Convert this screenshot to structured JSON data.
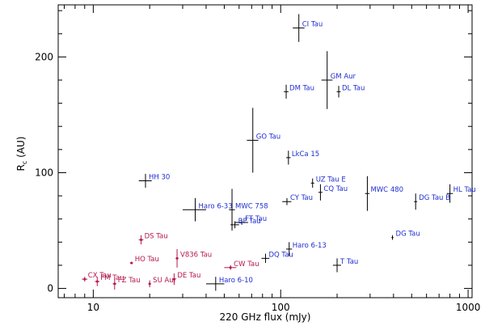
{
  "chart_data": {
    "type": "scatter",
    "title": "",
    "xlabel": "220 GHz flux (mJy)",
    "ylabel_main": "R",
    "ylabel_sub": "c",
    "ylabel_unit": " (AU)",
    "xscale": "log",
    "xlim": [
      6.5,
      1050
    ],
    "ylim": [
      -8,
      245
    ],
    "grid": false,
    "x_ticks": [
      10,
      100,
      1000
    ],
    "x_tick_labels": [
      "10",
      "100",
      "1000"
    ],
    "y_ticks": [
      0,
      100,
      200
    ],
    "y_tick_labels": [
      "0",
      "100",
      "200"
    ],
    "colors": {
      "blue": "#1f2ecf",
      "red": "#b5174a",
      "err": "#000000"
    },
    "points": [
      {
        "label": "CI Tau",
        "x": 125,
        "y": 225,
        "xerr": 9,
        "yerr": 12,
        "color": "blue",
        "ldx": 4,
        "ldy": -2
      },
      {
        "label": "GM Aur",
        "x": 177,
        "y": 180,
        "xerr": 12,
        "yerr": 25,
        "color": "blue",
        "ldx": 4,
        "ldy": -2
      },
      {
        "label": "DM Tau",
        "x": 107,
        "y": 170,
        "xerr": 3,
        "yerr": 6,
        "color": "blue",
        "ldx": 4,
        "ldy": -2
      },
      {
        "label": "DL Tau",
        "x": 204,
        "y": 170,
        "xerr": 5,
        "yerr": 5,
        "color": "blue",
        "ldx": 4,
        "ldy": -2
      },
      {
        "label": "GO Tau",
        "x": 71,
        "y": 128,
        "xerr": 5,
        "yerr": 28,
        "color": "blue",
        "ldx": 4,
        "ldy": -2
      },
      {
        "label": "LkCa 15",
        "x": 110,
        "y": 113,
        "xerr": 3,
        "yerr": 6,
        "color": "blue",
        "ldx": 4,
        "ldy": -2
      },
      {
        "label": "HH 30",
        "x": 19,
        "y": 93,
        "xerr": 1.5,
        "yerr": 6,
        "color": "blue",
        "ldx": 4,
        "ldy": -2
      },
      {
        "label": "UZ Tau E",
        "x": 148,
        "y": 91,
        "xerr": 3,
        "yerr": 4,
        "color": "blue",
        "ldx": 4,
        "ldy": -2
      },
      {
        "label": "CQ Tau",
        "x": 163,
        "y": 83,
        "xerr": 4,
        "yerr": 7,
        "color": "blue",
        "ldx": 4,
        "ldy": -2
      },
      {
        "label": "MWC 480",
        "x": 290,
        "y": 82,
        "xerr": 8,
        "yerr": 15,
        "color": "blue",
        "ldx": 4,
        "ldy": -2
      },
      {
        "label": "HL Tau",
        "x": 800,
        "y": 82,
        "xerr": 30,
        "yerr": 8,
        "color": "blue",
        "ldx": 4,
        "ldy": -2
      },
      {
        "label": "DG Tau B",
        "x": 525,
        "y": 75,
        "xerr": 10,
        "yerr": 7,
        "color": "blue",
        "ldx": 4,
        "ldy": -2
      },
      {
        "label": "CY Tau",
        "x": 108,
        "y": 75,
        "xerr": 6,
        "yerr": 3,
        "color": "blue",
        "ldx": 4,
        "ldy": -2
      },
      {
        "label": "Haro 6-33",
        "x": 35,
        "y": 68,
        "xerr": 5,
        "yerr": 10,
        "color": "blue",
        "ldx": 4,
        "ldy": -2
      },
      {
        "label": "MWC 758",
        "x": 55,
        "y": 68,
        "xerr": 2,
        "yerr": 18,
        "color": "blue",
        "ldx": 4,
        "ldy": -2
      },
      {
        "label": "FT Tau",
        "x": 62,
        "y": 57,
        "xerr": 5,
        "yerr": 2,
        "color": "blue",
        "ldx": 4,
        "ldy": -2
      },
      {
        "label": "BP Tau",
        "x": 57,
        "y": 55,
        "xerr": 3,
        "yerr": 3,
        "color": "blue",
        "ldx": 4,
        "ldy": -2
      },
      {
        "label": "DG Tau",
        "x": 395,
        "y": 44,
        "xerr": 5,
        "yerr": 2,
        "color": "blue",
        "ldx": 4,
        "ldy": -2
      },
      {
        "label": "Haro 6-13",
        "x": 111,
        "y": 34,
        "xerr": 4,
        "yerr": 6,
        "color": "blue",
        "ldx": 4,
        "ldy": -2
      },
      {
        "label": "DQ Tau",
        "x": 83,
        "y": 26,
        "xerr": 4,
        "yerr": 4,
        "color": "blue",
        "ldx": 4,
        "ldy": -2
      },
      {
        "label": "T Tau",
        "x": 200,
        "y": 20,
        "xerr": 10,
        "yerr": 6,
        "color": "blue",
        "ldx": 4,
        "ldy": -2
      },
      {
        "label": "Haro 6-10",
        "x": 45,
        "y": 4,
        "xerr": 5,
        "yerr": 6,
        "color": "blue",
        "ldx": 4,
        "ldy": -2
      },
      {
        "label": "DS Tau",
        "x": 18,
        "y": 42,
        "xerr": 0.5,
        "yerr": 4,
        "color": "red",
        "ldx": 4,
        "ldy": -2
      },
      {
        "label": "V836 Tau",
        "x": 28,
        "y": 26,
        "xerr": 0.5,
        "yerr": 8,
        "color": "red",
        "ldx": 4,
        "ldy": -2
      },
      {
        "label": "HO Tau",
        "x": 16,
        "y": 22,
        "xerr": 0.3,
        "yerr": 1,
        "color": "red",
        "ldx": 4,
        "ldy": -2
      },
      {
        "label": "CW Tau",
        "x": 54,
        "y": 18,
        "xerr": 4,
        "yerr": 2,
        "color": "red",
        "ldx": 4,
        "ldy": -2
      },
      {
        "label": "DE Tau",
        "x": 27,
        "y": 8,
        "xerr": 0.5,
        "yerr": 5,
        "color": "red",
        "ldx": 4,
        "ldy": -2
      },
      {
        "label": "CX Tau",
        "x": 9,
        "y": 8,
        "xerr": 0.3,
        "yerr": 2,
        "color": "red",
        "ldx": 4,
        "ldy": -2
      },
      {
        "label": "FM Tau",
        "x": 10.5,
        "y": 6,
        "xerr": 0.3,
        "yerr": 4,
        "color": "red",
        "ldx": 4,
        "ldy": -2
      },
      {
        "label": "FZ Tau",
        "x": 13,
        "y": 4,
        "xerr": 0.3,
        "yerr": 5,
        "color": "red",
        "ldx": 4,
        "ldy": -2
      },
      {
        "label": "SU Aur",
        "x": 20,
        "y": 4,
        "xerr": 0.3,
        "yerr": 3,
        "color": "red",
        "ldx": 4,
        "ldy": -2
      }
    ]
  }
}
